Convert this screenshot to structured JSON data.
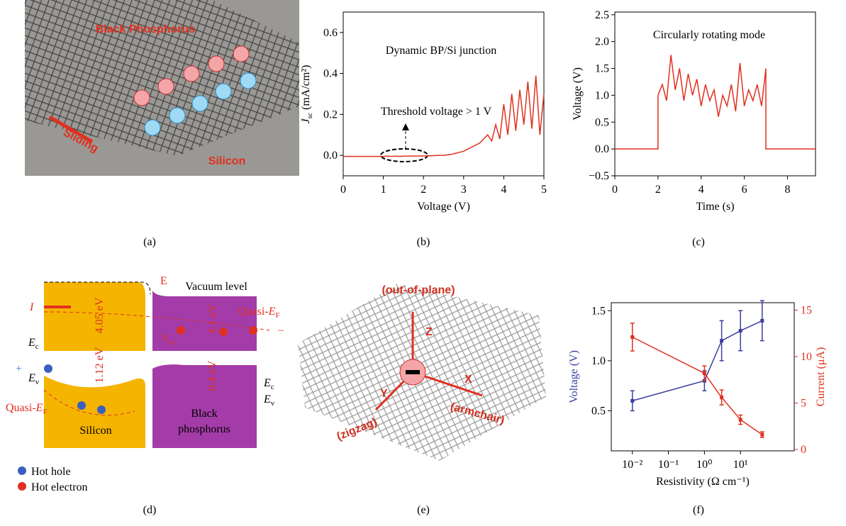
{
  "panels": {
    "labels": [
      "(a)",
      "(b)",
      "(c)",
      "(d)",
      "(e)",
      "(f)"
    ]
  },
  "panel_a": {
    "material_top": "Black Phosphorus",
    "motion": "Sliding",
    "material_bottom": "Silicon"
  },
  "panel_d": {
    "field": "E",
    "vacuum": "Vacuum level",
    "current": "I",
    "si_affinity": "4.05 eV",
    "si_gap": "1.12 eV",
    "bp_affinity": "4.1 eV",
    "bp_gap": "0.4 eV",
    "ec_left": {
      "main": "E",
      "sub": "c"
    },
    "ev_left": {
      "main": "E",
      "sub": "v"
    },
    "ec_right": {
      "main": "E",
      "sub": "c"
    },
    "ev_right": {
      "main": "E",
      "sub": "v"
    },
    "voc": {
      "main": "V",
      "sub": "oc"
    },
    "quasi_left": {
      "main": "Quasi-",
      "sym": "E",
      "sub": "F"
    },
    "quasi_right": {
      "main": "Quasi-",
      "sym": "E",
      "sub": "F"
    },
    "plus": "+",
    "minus": "–",
    "silicon": "Silicon",
    "bp": [
      "Black",
      "phosphorus"
    ],
    "legend": [
      "Hot hole",
      "Hot electron"
    ]
  },
  "panel_e": {
    "z_label": "(out-of-plane)",
    "z": "Z",
    "x": "X",
    "y": "Y",
    "x_label": "(armchair)",
    "y_label": "(zigzag)"
  },
  "chart_data": [
    {
      "type": "line",
      "annotations": [
        "Dynamic BP/Si junction",
        "Threshold voltage > 1 V"
      ],
      "xlabel": "Voltage (V)",
      "ylabel": {
        "symbol": "J",
        "sub": "sc",
        "unit": "(mA/cm²)"
      },
      "x": [
        0,
        0.1,
        0.2,
        0.3,
        0.4,
        0.5,
        0.6,
        0.7,
        0.8,
        0.9,
        1,
        1.1,
        1.2,
        1.3,
        1.4,
        1.5,
        1.6,
        1.7,
        1.8,
        1.9,
        2,
        2.1,
        2.2,
        2.3,
        2.4,
        2.5,
        2.6,
        2.7,
        2.8,
        2.9,
        3,
        3.1,
        3.2,
        3.3,
        3.4,
        3.5,
        3.6,
        3.7,
        3.8,
        3.9,
        4,
        4.1,
        4.2,
        4.3,
        4.4,
        4.5,
        4.6,
        4.7,
        4.8,
        4.9,
        5
      ],
      "values": [
        -0.005,
        -0.005,
        -0.005,
        -0.005,
        -0.005,
        -0.005,
        -0.005,
        -0.005,
        -0.005,
        -0.005,
        -0.005,
        -0.004,
        -0.005,
        -0.004,
        -0.005,
        -0.004,
        -0.004,
        -0.003,
        -0.004,
        -0.003,
        -0.003,
        -0.002,
        -0.002,
        -0.001,
        0,
        0,
        0.002,
        0.005,
        0.01,
        0.015,
        0.02,
        0.03,
        0.04,
        0.05,
        0.06,
        0.08,
        0.1,
        0.07,
        0.15,
        0.08,
        0.25,
        0.1,
        0.3,
        0.12,
        0.32,
        0.15,
        0.36,
        0.13,
        0.39,
        0.1,
        0.3
      ],
      "color": "#e0301e",
      "xlim": [
        0,
        5
      ],
      "ylim": [
        -0.1,
        0.7
      ],
      "xticks": [
        0,
        1,
        2,
        3,
        4,
        5
      ],
      "yticks": [
        {
          "value": 0,
          "label": "0.0"
        },
        {
          "value": 0.2,
          "label": "0.2"
        },
        {
          "value": 0.4,
          "label": "0.4"
        },
        {
          "value": 0.6,
          "label": "0.6"
        }
      ]
    },
    {
      "type": "line",
      "annotations": [
        "Circularly rotating mode"
      ],
      "xlabel": "Time (s)",
      "ylabel": "Voltage (V)",
      "x": [
        0,
        2,
        2,
        2.2,
        2.4,
        2.6,
        2.8,
        3,
        3.2,
        3.4,
        3.6,
        3.8,
        4,
        4.2,
        4.4,
        4.6,
        4.8,
        5,
        5.2,
        5.4,
        5.6,
        5.8,
        6,
        6.2,
        6.4,
        6.6,
        6.8,
        7,
        7,
        9.3
      ],
      "values": [
        0,
        0,
        1,
        1.2,
        0.9,
        1.75,
        1.1,
        1.5,
        0.9,
        1.4,
        1,
        1.3,
        0.8,
        1.2,
        0.9,
        1.1,
        0.6,
        1,
        0.8,
        1.2,
        0.7,
        1.6,
        0.8,
        1.1,
        0.9,
        1.2,
        0.8,
        1.5,
        0,
        0
      ],
      "color": "#e0301e",
      "xlim": [
        0,
        9.3
      ],
      "ylim": [
        -0.5,
        2.55
      ],
      "xticks": [
        0,
        2,
        4,
        6,
        8
      ],
      "yticks": [
        {
          "value": -0.5,
          "label": "−0.5"
        },
        {
          "value": 0,
          "label": "0.0"
        },
        {
          "value": 0.5,
          "label": "0.5"
        },
        {
          "value": 1,
          "label": "1.0"
        },
        {
          "value": 1.5,
          "label": "1.5"
        },
        {
          "value": 2,
          "label": "2.0"
        },
        {
          "value": 2.5,
          "label": "2.5"
        }
      ]
    },
    {
      "type": "line",
      "log_x": true,
      "xlabel": "Resistivity (Ω cm⁻¹)",
      "ylabel": "Voltage (V)",
      "y2label": "Current (μA)",
      "x": [
        0.01,
        1,
        3,
        10,
        40
      ],
      "series": [
        {
          "color": "#3a3fa0",
          "values": [
            0.6,
            0.8,
            1.2,
            1.3,
            1.4
          ],
          "errors": [
            0.1,
            0.1,
            0.2,
            0.2,
            0.2
          ]
        },
        {
          "color": "#e0301e",
          "axis": "y2",
          "values": [
            12.1,
            8.2,
            5.6,
            3.2,
            1.6
          ],
          "errors": [
            1.5,
            0.8,
            0.8,
            0.5,
            0.3
          ]
        }
      ],
      "xlim": [
        0.0026,
        310
      ],
      "ylim": [
        0.1,
        1.58
      ],
      "y2lim": [
        -0.15,
        15.8
      ],
      "xticks": [
        {
          "value": 0.01,
          "label": "10⁻²"
        },
        {
          "value": 0.1,
          "label": "10⁻¹"
        },
        {
          "value": 1,
          "label": "10⁰"
        },
        {
          "value": 10,
          "label": "10¹"
        }
      ],
      "yticks": [
        {
          "value": 0.5,
          "label": "0.5"
        },
        {
          "value": 1,
          "label": "1.0"
        },
        {
          "value": 1.5,
          "label": "1.5"
        }
      ],
      "y2ticks": [
        0,
        5,
        10,
        15
      ]
    }
  ]
}
